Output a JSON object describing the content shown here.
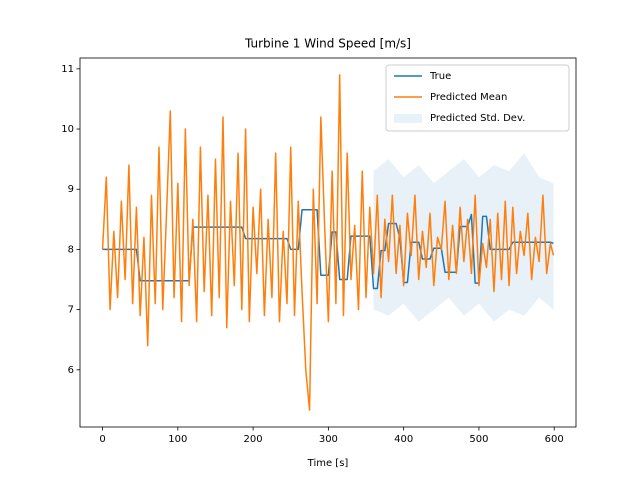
{
  "chart_data": {
    "type": "line",
    "title": "Turbine 1 Wind Speed [m/s]",
    "x_label": "Time [s]",
    "x": [
      0,
      5,
      10,
      15,
      20,
      25,
      30,
      35,
      40,
      45,
      50,
      55,
      60,
      65,
      70,
      75,
      80,
      85,
      90,
      95,
      100,
      105,
      110,
      115,
      120,
      125,
      130,
      135,
      140,
      145,
      150,
      155,
      160,
      165,
      170,
      175,
      180,
      185,
      190,
      195,
      200,
      205,
      210,
      215,
      220,
      225,
      230,
      235,
      240,
      245,
      250,
      255,
      260,
      265,
      270,
      275,
      280,
      285,
      290,
      295,
      300,
      305,
      310,
      315,
      320,
      325,
      330,
      335,
      340,
      345,
      350,
      355,
      360,
      365,
      370,
      375,
      380,
      385,
      390,
      395,
      400,
      405,
      410,
      415,
      420,
      425,
      430,
      435,
      440,
      445,
      450,
      455,
      460,
      465,
      470,
      475,
      480,
      485,
      490,
      495,
      500,
      505,
      510,
      515,
      520,
      525,
      530,
      535,
      540,
      545,
      550,
      555,
      560,
      565,
      570,
      575,
      580,
      585,
      590,
      595,
      599
    ],
    "series": [
      {
        "name": "True",
        "color": "#1f77b4",
        "values": [
          8.0,
          8.0,
          8.0,
          8.0,
          8.0,
          8.0,
          8.0,
          8.0,
          8.0,
          8.0,
          7.48,
          7.48,
          7.48,
          7.48,
          7.48,
          7.48,
          7.48,
          7.48,
          7.48,
          7.48,
          7.48,
          7.48,
          7.48,
          7.48,
          8.37,
          8.37,
          8.37,
          8.37,
          8.37,
          8.37,
          8.37,
          8.37,
          8.37,
          8.37,
          8.37,
          8.37,
          8.37,
          8.37,
          8.18,
          8.18,
          8.18,
          8.18,
          8.18,
          8.18,
          8.18,
          8.18,
          8.18,
          8.18,
          8.18,
          8.18,
          8.0,
          8.0,
          8.0,
          8.66,
          8.66,
          8.66,
          8.66,
          8.66,
          7.57,
          7.57,
          7.57,
          8.29,
          8.29,
          7.5,
          7.5,
          7.5,
          8.22,
          8.22,
          8.22,
          8.22,
          8.22,
          8.22,
          7.35,
          7.35,
          7.98,
          7.98,
          8.43,
          8.43,
          8.43,
          8.19,
          7.45,
          7.45,
          8.12,
          8.12,
          8.12,
          7.84,
          7.84,
          7.84,
          8.02,
          8.02,
          8.02,
          7.62,
          7.62,
          7.62,
          7.62,
          8.38,
          8.38,
          8.38,
          8.58,
          7.44,
          7.44,
          8.55,
          8.55,
          8.0,
          8.0,
          8.0,
          8.0,
          8.0,
          8.0,
          8.12,
          8.12,
          8.12,
          8.12,
          8.12,
          8.12,
          8.12,
          8.12,
          8.12,
          8.12,
          8.12,
          8.1
        ]
      },
      {
        "name": "Predicted Mean",
        "color": "#ff7f0e",
        "values": [
          8.0,
          9.2,
          7.0,
          8.3,
          7.2,
          8.8,
          7.5,
          9.4,
          7.1,
          8.7,
          6.9,
          8.2,
          6.4,
          8.9,
          7.1,
          9.7,
          7.0,
          8.6,
          10.3,
          7.2,
          9.1,
          6.8,
          10.0,
          7.4,
          8.5,
          6.8,
          9.7,
          7.3,
          8.9,
          6.9,
          9.5,
          7.2,
          10.2,
          6.7,
          8.8,
          7.4,
          9.6,
          7.0,
          10.0,
          6.8,
          8.7,
          7.6,
          9.0,
          6.9,
          8.5,
          7.2,
          9.6,
          6.8,
          8.3,
          7.1,
          9.7,
          6.9,
          8.8,
          7.3,
          6.0,
          5.33,
          9.0,
          7.1,
          10.2,
          8.4,
          6.8,
          9.3,
          7.1,
          10.9,
          6.9,
          9.6,
          7.5,
          8.4,
          7.0,
          9.3,
          7.2,
          8.7,
          7.6,
          8.9,
          7.2,
          8.5,
          7.8,
          8.9,
          7.6,
          8.4,
          7.4,
          8.6,
          7.9,
          8.9,
          7.5,
          8.3,
          7.7,
          8.6,
          7.4,
          8.2,
          8.0,
          8.8,
          7.5,
          8.4,
          7.6,
          8.7,
          7.8,
          8.5,
          7.6,
          8.9,
          7.4,
          8.1,
          7.7,
          8.5,
          7.3,
          8.6,
          7.5,
          8.8,
          7.4,
          8.7,
          7.6,
          8.3,
          7.9,
          8.6,
          7.5,
          8.2,
          7.8,
          8.9,
          7.6,
          8.1,
          7.9
        ]
      },
      {
        "name": "Predicted Std. Dev.",
        "color": "#1f77b4",
        "x": [
          360,
          380,
          400,
          420,
          440,
          460,
          480,
          500,
          520,
          540,
          560,
          580,
          599
        ],
        "lower": [
          7.0,
          6.9,
          7.1,
          6.8,
          7.0,
          7.2,
          6.9,
          7.1,
          6.8,
          7.0,
          6.9,
          7.2,
          7.0
        ],
        "upper": [
          9.3,
          9.5,
          9.2,
          9.4,
          9.1,
          9.3,
          9.5,
          9.2,
          9.4,
          9.3,
          9.6,
          9.2,
          9.1
        ]
      }
    ],
    "xlim": [
      -29.95,
      628.95
    ],
    "ylim": [
      5.05,
      11.18
    ],
    "xticks": [
      0,
      100,
      200,
      300,
      400,
      500,
      600
    ],
    "yticks": [
      6,
      7,
      8,
      9,
      10,
      11
    ],
    "legend": "upper right"
  }
}
